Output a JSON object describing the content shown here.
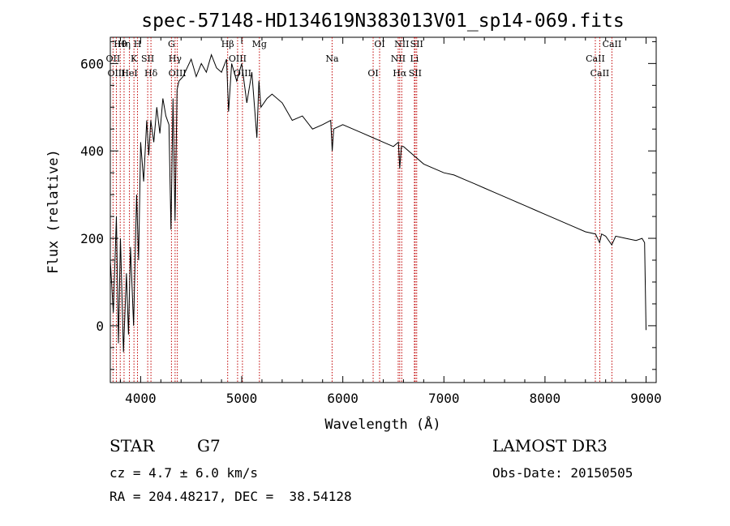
{
  "chart_data": {
    "type": "line",
    "title": "spec-57148-HD134619N383013V01_sp14-069.fits",
    "xlabel": "Wavelength (Å)",
    "ylabel": "Flux (relative)",
    "xlim": [
      3700,
      9100
    ],
    "ylim": [
      -130,
      660
    ],
    "xticks": [
      4000,
      5000,
      6000,
      7000,
      8000,
      9000
    ],
    "yticks": [
      0,
      200,
      400,
      600
    ],
    "grid": false,
    "series": [
      {
        "name": "Flux",
        "x": [
          3700,
          3730,
          3760,
          3780,
          3800,
          3830,
          3860,
          3880,
          3900,
          3930,
          3960,
          3980,
          4000,
          4030,
          4060,
          4080,
          4100,
          4130,
          4160,
          4190,
          4220,
          4250,
          4280,
          4300,
          4320,
          4340,
          4360,
          4380,
          4420,
          4460,
          4500,
          4550,
          4600,
          4650,
          4700,
          4750,
          4800,
          4850,
          4870,
          4900,
          4950,
          5000,
          5050,
          5100,
          5150,
          5170,
          5190,
          5250,
          5300,
          5400,
          5500,
          5600,
          5700,
          5800,
          5880,
          5895,
          5910,
          6000,
          6100,
          6200,
          6300,
          6400,
          6500,
          6550,
          6563,
          6580,
          6600,
          6700,
          6800,
          6900,
          7000,
          7100,
          7200,
          7300,
          7400,
          7500,
          7600,
          7700,
          7800,
          7900,
          8000,
          8100,
          8200,
          8300,
          8400,
          8500,
          8540,
          8560,
          8600,
          8660,
          8700,
          8800,
          8900,
          8960,
          8985,
          9000
        ],
        "values": [
          150,
          30,
          250,
          -40,
          200,
          -60,
          120,
          -20,
          180,
          0,
          300,
          150,
          420,
          330,
          470,
          390,
          470,
          420,
          500,
          440,
          520,
          480,
          460,
          220,
          520,
          240,
          540,
          560,
          570,
          590,
          610,
          570,
          600,
          580,
          620,
          590,
          580,
          610,
          490,
          600,
          560,
          600,
          510,
          580,
          430,
          560,
          500,
          520,
          530,
          510,
          470,
          480,
          450,
          460,
          470,
          400,
          450,
          460,
          450,
          440,
          430,
          420,
          410,
          420,
          360,
          410,
          410,
          390,
          370,
          360,
          350,
          345,
          335,
          325,
          315,
          305,
          295,
          285,
          275,
          265,
          255,
          245,
          235,
          225,
          215,
          210,
          190,
          210,
          205,
          185,
          205,
          200,
          195,
          200,
          190,
          -10
        ]
      }
    ],
    "spectral_lines": [
      {
        "label": "Hθ",
        "wave": 3798
      },
      {
        "label": "OII",
        "wave": 3727
      },
      {
        "label": "OIII",
        "wave": 3760
      },
      {
        "label": "Hη",
        "wave": 3836
      },
      {
        "label": "K",
        "wave": 3934
      },
      {
        "label": "HeI",
        "wave": 3889
      },
      {
        "label": "H",
        "wave": 3969
      },
      {
        "label": "SII",
        "wave": 4070
      },
      {
        "label": "Hδ",
        "wave": 4102
      },
      {
        "label": "G",
        "wave": 4305
      },
      {
        "label": "Hγ",
        "wave": 4341
      },
      {
        "label": "OIII",
        "wave": 4363
      },
      {
        "label": "Hβ",
        "wave": 4861
      },
      {
        "label": "OIII",
        "wave": 4959
      },
      {
        "label": "OIII",
        "wave": 5007
      },
      {
        "label": "Mg",
        "wave": 5175
      },
      {
        "label": "Na",
        "wave": 5894
      },
      {
        "label": "OI",
        "wave": 6300
      },
      {
        "label": "OI",
        "wave": 6364
      },
      {
        "label": "NII",
        "wave": 6548
      },
      {
        "label": "Hα",
        "wave": 6563
      },
      {
        "label": "NII",
        "wave": 6583
      },
      {
        "label": "Li",
        "wave": 6708
      },
      {
        "label": "SII",
        "wave": 6716
      },
      {
        "label": "SII",
        "wave": 6731
      },
      {
        "label": "CaII",
        "wave": 8498
      },
      {
        "label": "CaII",
        "wave": 8542
      },
      {
        "label": "CaII",
        "wave": 8662
      }
    ]
  },
  "info": {
    "object_class": "STAR",
    "subclass": "G7",
    "survey": "LAMOST DR3",
    "redshift_line": "cz = 4.7 ± 6.0 km/s",
    "obs_date_line": "Obs-Date: 20150505",
    "coords_line": "RA = 204.48217, DEC =  38.54128"
  },
  "colors": {
    "spectrum": "#000000",
    "marker": "#c00000",
    "marker_label": "#000000",
    "background": "#ffffff"
  }
}
